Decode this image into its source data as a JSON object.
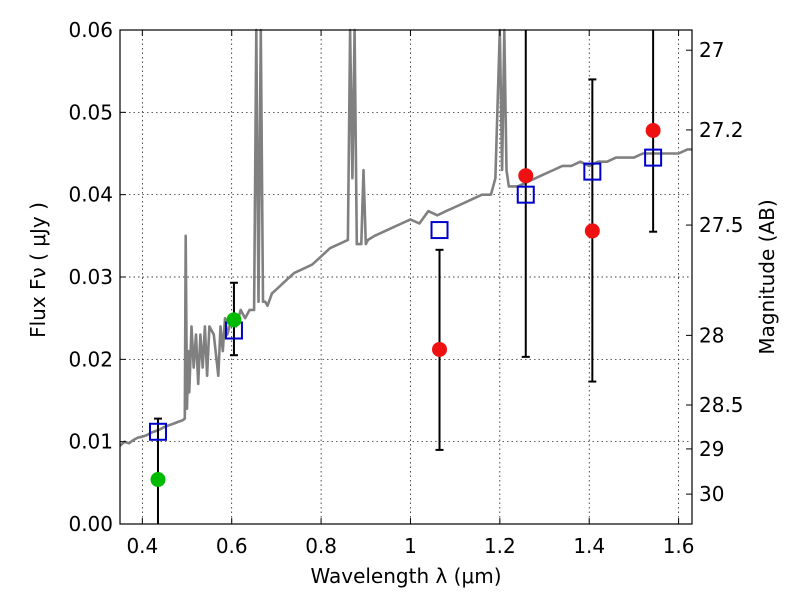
{
  "chart_data": {
    "type": "scatter",
    "xlabel": "Wavelength  λ (μm)",
    "ylabel": "Flux  Fν  ( μJy )",
    "y2label": "Magnitude (AB)",
    "xlim": [
      0.35,
      1.63
    ],
    "ylim": [
      0.0,
      0.06
    ],
    "grid": true,
    "x_ticks": [
      {
        "value": 0.4,
        "label": "0.4"
      },
      {
        "value": 0.6,
        "label": "0.6"
      },
      {
        "value": 0.8,
        "label": "0.8"
      },
      {
        "value": 1.0,
        "label": "1"
      },
      {
        "value": 1.2,
        "label": "1.2"
      },
      {
        "value": 1.4,
        "label": "1.4"
      },
      {
        "value": 1.6,
        "label": "1.6"
      }
    ],
    "y_ticks": [
      {
        "value": 0.0,
        "label": "0.00"
      },
      {
        "value": 0.01,
        "label": "0.01"
      },
      {
        "value": 0.02,
        "label": "0.02"
      },
      {
        "value": 0.03,
        "label": "0.03"
      },
      {
        "value": 0.04,
        "label": "0.04"
      },
      {
        "value": 0.05,
        "label": "0.05"
      },
      {
        "value": 0.06,
        "label": "0.06"
      }
    ],
    "y2_ticks": [
      {
        "value": 27,
        "label": "27"
      },
      {
        "value": 27.2,
        "label": "27.2"
      },
      {
        "value": 27.5,
        "label": "27.5"
      },
      {
        "value": 28,
        "label": "28"
      },
      {
        "value": 28.5,
        "label": "28.5"
      },
      {
        "value": 29,
        "label": "29"
      },
      {
        "value": 30,
        "label": "30"
      }
    ],
    "model_spectrum": {
      "color": "#808080",
      "x": [
        0.35,
        0.36,
        0.37,
        0.38,
        0.39,
        0.4,
        0.41,
        0.42,
        0.43,
        0.44,
        0.45,
        0.46,
        0.47,
        0.48,
        0.49,
        0.495,
        0.497,
        0.5,
        0.503,
        0.505,
        0.51,
        0.515,
        0.52,
        0.525,
        0.53,
        0.535,
        0.54,
        0.545,
        0.55,
        0.56,
        0.57,
        0.575,
        0.58,
        0.585,
        0.59,
        0.6,
        0.61,
        0.62,
        0.63,
        0.64,
        0.65,
        0.655,
        0.66,
        0.665,
        0.67,
        0.675,
        0.68,
        0.69,
        0.7,
        0.72,
        0.74,
        0.76,
        0.78,
        0.8,
        0.82,
        0.84,
        0.86,
        0.865,
        0.87,
        0.875,
        0.88,
        0.89,
        0.895,
        0.9,
        0.905,
        0.92,
        0.94,
        0.96,
        0.98,
        1.0,
        1.02,
        1.04,
        1.06,
        1.08,
        1.1,
        1.12,
        1.14,
        1.16,
        1.18,
        1.19,
        1.2,
        1.205,
        1.21,
        1.215,
        1.22,
        1.24,
        1.26,
        1.28,
        1.3,
        1.32,
        1.34,
        1.36,
        1.38,
        1.4,
        1.42,
        1.44,
        1.46,
        1.48,
        1.5,
        1.52,
        1.54,
        1.56,
        1.58,
        1.6,
        1.62,
        1.63
      ],
      "y": [
        0.0095,
        0.01,
        0.0098,
        0.0102,
        0.0105,
        0.0106,
        0.0108,
        0.0111,
        0.0113,
        0.0115,
        0.0118,
        0.012,
        0.0122,
        0.0124,
        0.0126,
        0.0128,
        0.035,
        0.014,
        0.021,
        0.016,
        0.024,
        0.019,
        0.023,
        0.017,
        0.023,
        0.019,
        0.024,
        0.018,
        0.024,
        0.023,
        0.018,
        0.024,
        0.021,
        0.025,
        0.023,
        0.025,
        0.024,
        0.026,
        0.025,
        0.026,
        0.026,
        0.06,
        0.027,
        0.06,
        0.027,
        0.027,
        0.0265,
        0.028,
        0.0285,
        0.0295,
        0.0305,
        0.031,
        0.0315,
        0.0325,
        0.0335,
        0.034,
        0.0345,
        0.06,
        0.042,
        0.06,
        0.034,
        0.034,
        0.043,
        0.034,
        0.0345,
        0.035,
        0.0355,
        0.036,
        0.0365,
        0.037,
        0.0365,
        0.038,
        0.0375,
        0.038,
        0.0385,
        0.039,
        0.0395,
        0.04,
        0.04,
        0.042,
        0.06,
        0.043,
        0.06,
        0.043,
        0.041,
        0.041,
        0.0415,
        0.042,
        0.0425,
        0.043,
        0.0435,
        0.0435,
        0.044,
        0.0435,
        0.044,
        0.044,
        0.0445,
        0.0445,
        0.0445,
        0.045,
        0.045,
        0.045,
        0.045,
        0.045,
        0.0455,
        0.0455
      ]
    },
    "series": [
      {
        "marker": "open-square",
        "color": "#0000cc",
        "points": [
          {
            "x": 0.435,
            "y": 0.0112
          },
          {
            "x": 0.605,
            "y": 0.0235
          },
          {
            "x": 1.065,
            "y": 0.0357
          },
          {
            "x": 1.258,
            "y": 0.04
          },
          {
            "x": 1.407,
            "y": 0.0428
          },
          {
            "x": 1.543,
            "y": 0.0445
          }
        ]
      },
      {
        "marker": "filled-circle",
        "color": "#00bb00",
        "points": [
          {
            "x": 0.435,
            "y": 0.0054,
            "err_low": 0.0,
            "err_high": 0.0128
          },
          {
            "x": 0.605,
            "y": 0.0248,
            "err_low": 0.0205,
            "err_high": 0.0293
          }
        ]
      },
      {
        "marker": "filled-circle",
        "color": "#ee1111",
        "points": [
          {
            "x": 1.065,
            "y": 0.0212,
            "err_low": 0.009,
            "err_high": 0.0333
          },
          {
            "x": 1.258,
            "y": 0.0423,
            "err_low": 0.0203,
            "err_high": 0.06
          },
          {
            "x": 1.407,
            "y": 0.0356,
            "err_low": 0.0173,
            "err_high": 0.054
          },
          {
            "x": 1.543,
            "y": 0.0478,
            "err_low": 0.0355,
            "err_high": 0.06
          }
        ]
      }
    ]
  }
}
